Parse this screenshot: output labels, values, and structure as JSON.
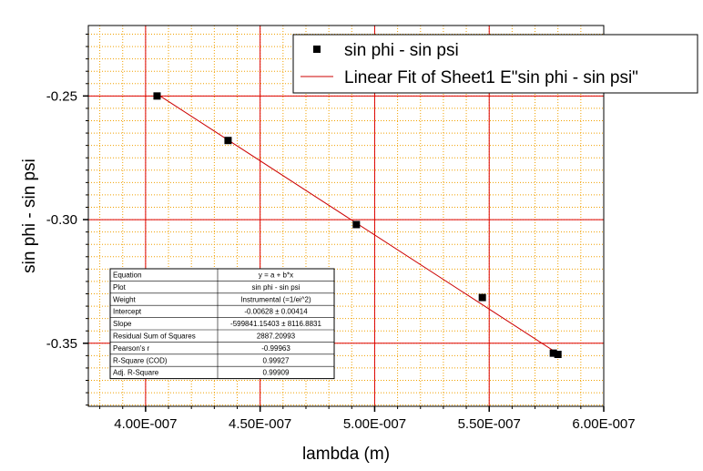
{
  "chart_data": {
    "type": "scatter",
    "xlabel": "lambda (m)",
    "ylabel": "sin phi - sin psi",
    "xlim": [
      3.75e-07,
      6e-07
    ],
    "ylim": [
      -0.3755,
      -0.2215
    ],
    "x_ticks": [
      4e-07,
      4.5e-07,
      5e-07,
      5.5e-07,
      6e-07
    ],
    "x_tick_labels": [
      "4.00E-007",
      "4.50E-007",
      "5.00E-007",
      "5.50E-007",
      "6.00E-007"
    ],
    "y_ticks": [
      -0.25,
      -0.3,
      -0.35
    ],
    "y_tick_labels": [
      "-0.25",
      "-0.30",
      "-0.35"
    ],
    "grid": true,
    "legend_position": "top-right",
    "series": [
      {
        "name": "sin phi - sin psi",
        "marker": "square",
        "color": "#000000",
        "x": [
          4.05e-07,
          4.36e-07,
          4.92e-07,
          5.47e-07,
          5.78e-07,
          5.8e-07
        ],
        "y": [
          -0.25,
          -0.268,
          -0.302,
          -0.3315,
          -0.354,
          -0.3545
        ]
      },
      {
        "name": "Linear Fit of Sheet1 E\"sin phi - sin psi\"",
        "type": "line",
        "color": "#cc0000",
        "intercept": -0.00628,
        "slope": -599841.15403,
        "x_range": [
          4.05e-07,
          5.8e-07
        ]
      }
    ],
    "stats_table": [
      [
        "Equation",
        "y = a + b*x"
      ],
      [
        "Plot",
        "sin phi - sin psi"
      ],
      [
        "Weight",
        "Instrumental (=1/ei^2)"
      ],
      [
        "Intercept",
        "-0.00628 ± 0.00414"
      ],
      [
        "Slope",
        "-599841.15403 ± 8116.8831"
      ],
      [
        "Residual Sum of Squares",
        "2887.20993"
      ],
      [
        "Pearson's r",
        "-0.99963"
      ],
      [
        "R-Square (COD)",
        "0.99927"
      ],
      [
        "Adj. R-Square",
        "0.99909"
      ]
    ]
  }
}
